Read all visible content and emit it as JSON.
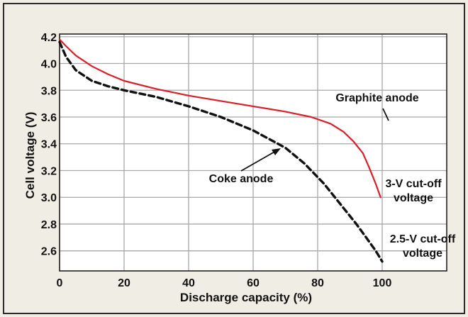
{
  "chart_data": {
    "type": "line",
    "title": "",
    "xlabel": "Discharge capacity (%)",
    "ylabel": "Cell voltage (V)",
    "xlim": [
      0,
      120
    ],
    "ylim": [
      2.45,
      4.22
    ],
    "xticks": [
      0,
      20,
      40,
      60,
      80,
      100
    ],
    "xtick_labels": [
      "0",
      "20",
      "40",
      "60",
      "80",
      "100"
    ],
    "yticks": [
      2.6,
      2.8,
      3.0,
      3.2,
      3.4,
      3.6,
      3.8,
      4.0,
      4.2
    ],
    "ytick_labels": [
      "2.6",
      "2.8",
      "3.0",
      "3.2",
      "3.4",
      "3.6",
      "3.8",
      "4.0",
      "4.2"
    ],
    "grid": true,
    "series": [
      {
        "name": "Graphite anode",
        "color": "#d7202a",
        "style": "solid",
        "x": [
          0,
          2,
          5,
          10,
          15,
          20,
          30,
          40,
          50,
          60,
          70,
          78,
          84,
          88,
          91,
          94,
          96,
          98,
          99.5
        ],
        "y": [
          4.18,
          4.13,
          4.06,
          3.98,
          3.92,
          3.87,
          3.81,
          3.76,
          3.72,
          3.68,
          3.64,
          3.6,
          3.55,
          3.49,
          3.42,
          3.33,
          3.22,
          3.1,
          3.0
        ]
      },
      {
        "name": "Coke anode",
        "color": "#111111",
        "style": "dashed",
        "x": [
          0,
          2,
          5,
          10,
          15,
          20,
          30,
          40,
          50,
          60,
          70,
          76,
          82,
          88,
          92,
          95,
          98,
          100
        ],
        "y": [
          4.16,
          4.05,
          3.95,
          3.87,
          3.83,
          3.8,
          3.75,
          3.68,
          3.6,
          3.5,
          3.37,
          3.25,
          3.1,
          2.92,
          2.8,
          2.7,
          2.6,
          2.52
        ]
      }
    ],
    "annotations": [
      {
        "id": "graphite",
        "text": "Graphite anode"
      },
      {
        "id": "coke",
        "text": "Coke anode"
      },
      {
        "id": "cutoff3",
        "text": [
          "3-V cut-off",
          "voltage"
        ]
      },
      {
        "id": "cutoff25",
        "text": [
          "2.5-V cut-off",
          "voltage"
        ]
      }
    ]
  },
  "colors": {
    "background": "#f0eee4",
    "border": "#2b2b2b",
    "grid": "#a8a8a8"
  }
}
